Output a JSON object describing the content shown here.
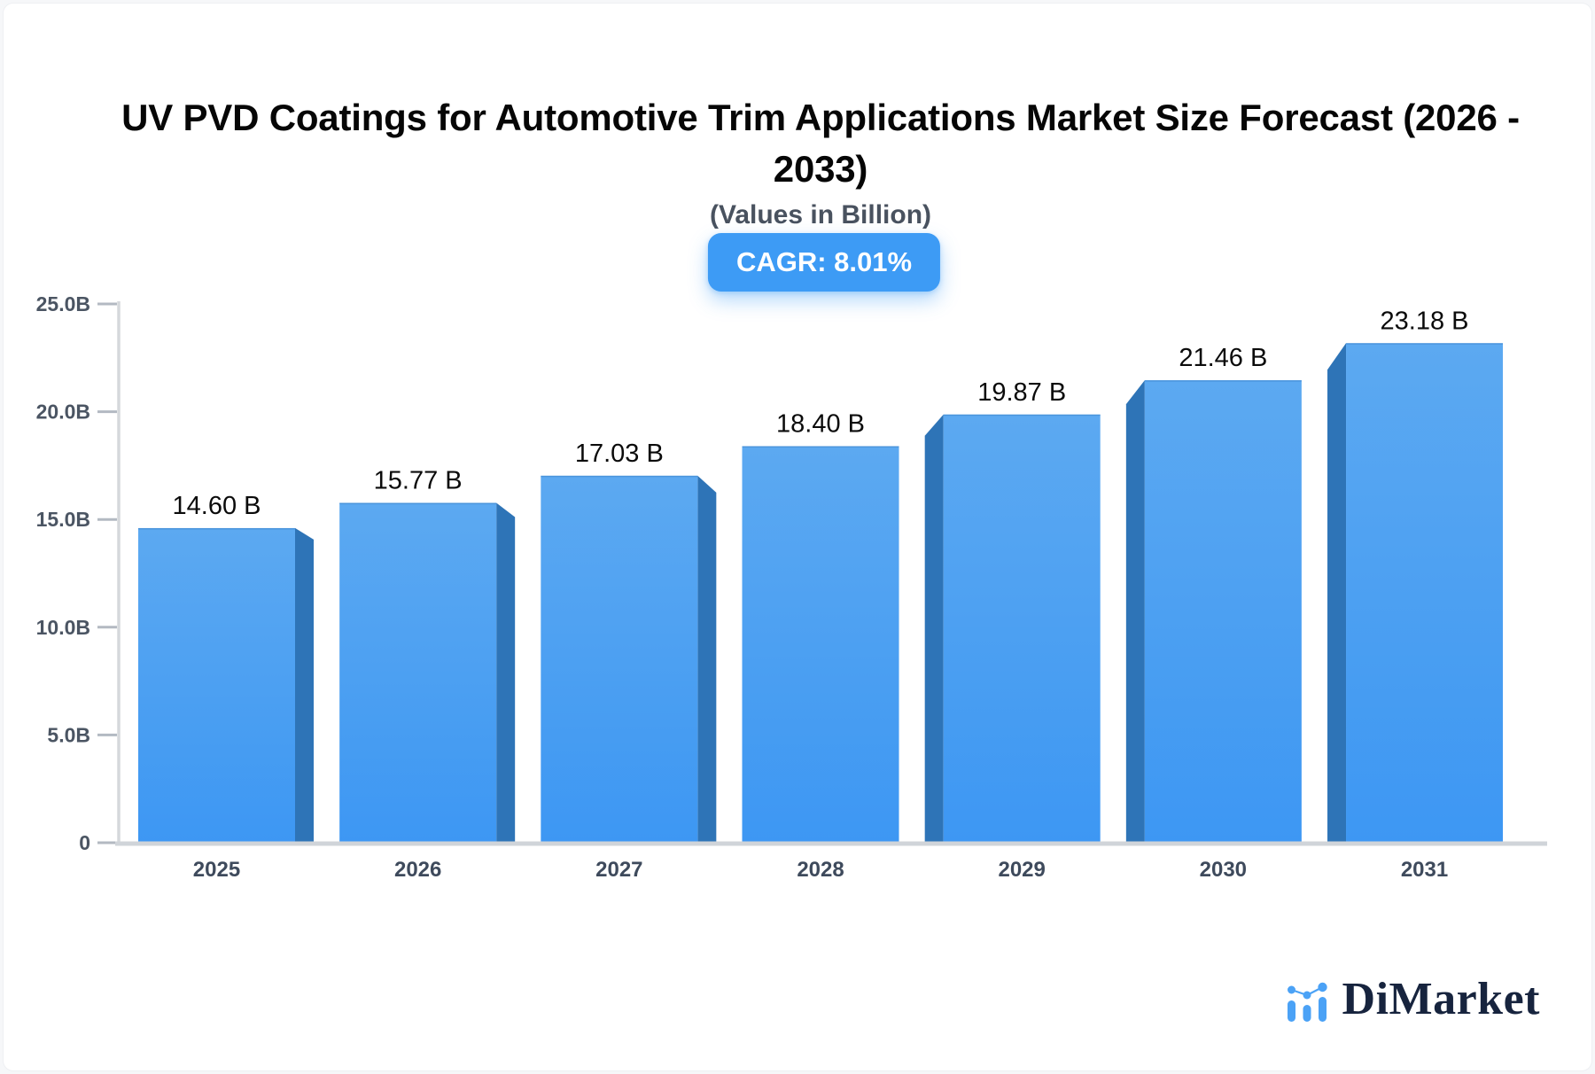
{
  "header": {
    "title": "UV PVD Coatings for Automotive Trim Applications Market Size Forecast (2026 - 2033)",
    "subtitle": "(Values in Billion)",
    "cagr_badge": "CAGR: 8.01%"
  },
  "chart_data": {
    "type": "bar",
    "title": "UV PVD Coatings for Automotive Trim Applications Market Size Forecast (2026 - 2033)",
    "subtitle": "(Values in Billion)",
    "cagr": "8.01%",
    "categories": [
      "2025",
      "2026",
      "2027",
      "2028",
      "2029",
      "2030",
      "2031"
    ],
    "values": [
      14.6,
      15.77,
      17.03,
      18.4,
      19.87,
      21.46,
      23.18
    ],
    "value_labels": [
      "14.60 B",
      "15.77 B",
      "17.03 B",
      "18.40 B",
      "19.87 B",
      "21.46 B",
      "23.18 B"
    ],
    "yticks": [
      {
        "label": "25.0B",
        "value": 25
      },
      {
        "label": "20.0B",
        "value": 20
      },
      {
        "label": "15.0B",
        "value": 15
      },
      {
        "label": "10.0B",
        "value": 10
      },
      {
        "label": "5.0B",
        "value": 5
      },
      {
        "label": "0",
        "value": 0
      }
    ],
    "ylim": [
      0,
      25
    ],
    "xlabel": "",
    "ylabel": "",
    "grid": false,
    "legend": "none",
    "bar_style": "3d-bevel"
  },
  "branding": {
    "logo_text": "DiMarket",
    "logo_icon": "bar-chart-with-trend-dots"
  },
  "theme": {
    "accent_blue": "#3D9BF5",
    "badge_text": "#FFFFFF",
    "bar_face_top": "#5CA9F1",
    "bar_face_bottom": "#3D97F3",
    "bar_face_edge": "#3E86CC",
    "bar_side": "#2E74B7",
    "axis_line": "#D5D8DC",
    "baseline": "#D0D4D9",
    "tick": "#B3B9C2",
    "y_label": "#4B5563",
    "x_label": "#3E4A5C",
    "value_label": "#0B0B0B",
    "title": "#060606",
    "subtitle": "#49525F",
    "logo_navy": "#17243E",
    "logo_blue": "#4BA2F6"
  }
}
